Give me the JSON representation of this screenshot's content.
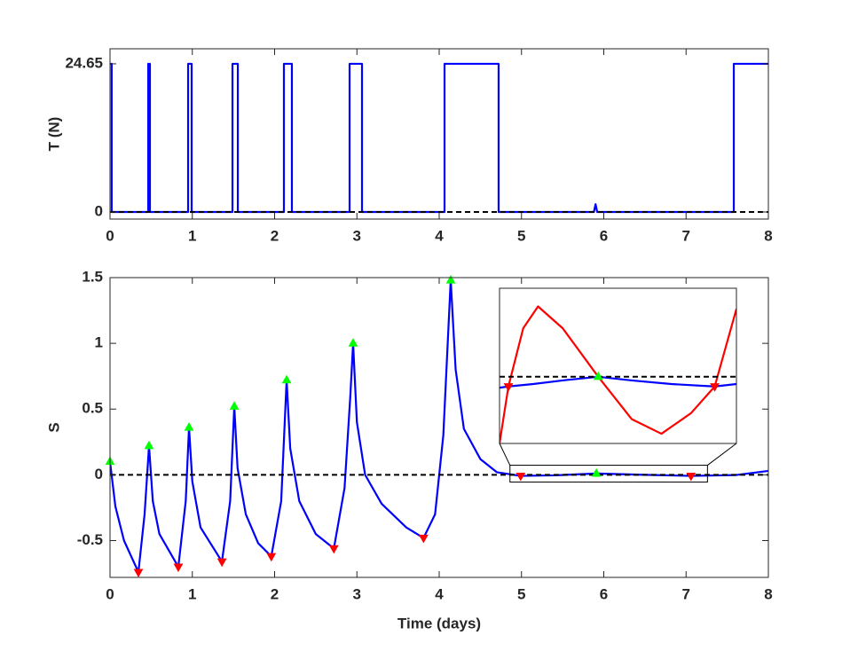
{
  "chart_data": [
    {
      "type": "line",
      "ylabel": "T (N)",
      "xlim": [
        0,
        8
      ],
      "xticks": [
        0,
        1,
        2,
        3,
        4,
        5,
        6,
        7,
        8
      ],
      "ylim": [
        -1.18,
        27.15
      ],
      "yticks": [
        0,
        24.65
      ],
      "hline": 0,
      "series": [
        {
          "color": "#0000ff",
          "x": [
            0,
            0.02,
            0.02,
            0.464,
            0.464,
            0.485,
            0.485,
            0.949,
            0.949,
            0.992,
            0.992,
            1.488,
            1.488,
            1.553,
            1.553,
            2.113,
            2.113,
            2.21,
            2.21,
            2.911,
            2.911,
            3.062,
            3.062,
            4.065,
            4.065,
            4.722,
            4.722,
            5.88,
            5.9,
            5.92,
            7.58,
            7.58,
            8
          ],
          "values": [
            24.65,
            24.65,
            0,
            0,
            24.65,
            24.65,
            0,
            0,
            24.65,
            24.65,
            0,
            0,
            24.65,
            24.65,
            0,
            0,
            24.65,
            24.65,
            0,
            0,
            24.65,
            24.65,
            0,
            0,
            24.65,
            24.65,
            0,
            0,
            1.3,
            0,
            0,
            24.65,
            24.65
          ]
        }
      ]
    },
    {
      "type": "line",
      "xlabel": "Time (days)",
      "ylabel": "S",
      "xlim": [
        0,
        8
      ],
      "xticks": [
        0,
        1,
        2,
        3,
        4,
        5,
        6,
        7,
        8
      ],
      "ylim": [
        -0.78,
        1.5
      ],
      "yticks": [
        -0.5,
        0,
        0.5,
        1,
        1.5
      ],
      "hline": 0,
      "series": [
        {
          "color": "#0000ff",
          "x": [
            0,
            0.065,
            0.17,
            0.345,
            0.42,
            0.474,
            0.52,
            0.6,
            0.83,
            0.92,
            0.96,
            1.0,
            1.1,
            1.36,
            1.46,
            1.51,
            1.55,
            1.65,
            1.8,
            1.96,
            2.08,
            2.146,
            2.19,
            2.3,
            2.5,
            2.72,
            2.85,
            2.92,
            2.954,
            3.0,
            3.1,
            3.3,
            3.6,
            3.81,
            3.95,
            4.05,
            4.14,
            4.2,
            4.3,
            4.5,
            4.7,
            4.99,
            5.4,
            5.91,
            6.5,
            7.06,
            7.6,
            8
          ],
          "values": [
            0.1,
            -0.24,
            -0.5,
            -0.74,
            -0.3,
            0.22,
            -0.2,
            -0.45,
            -0.7,
            -0.2,
            0.36,
            -0.05,
            -0.4,
            -0.66,
            -0.2,
            0.52,
            0.05,
            -0.3,
            -0.52,
            -0.62,
            -0.2,
            0.72,
            0.2,
            -0.2,
            -0.45,
            -0.56,
            -0.1,
            0.6,
            1.0,
            0.4,
            0.0,
            -0.22,
            -0.4,
            -0.48,
            -0.3,
            0.3,
            1.48,
            0.8,
            0.35,
            0.12,
            0.02,
            -0.008,
            -0.004,
            0.01,
            0.0,
            -0.008,
            -0.002,
            0.03
          ]
        },
        {
          "color": "#00ff00",
          "marker": "triangle-up",
          "x": [
            0,
            0.474,
            0.96,
            1.51,
            2.146,
            2.954,
            4.14,
            5.91
          ],
          "values": [
            0.1,
            0.22,
            0.36,
            0.52,
            0.72,
            1.0,
            1.48,
            0.01
          ]
        },
        {
          "color": "#ff0000",
          "marker": "triangle-down",
          "x": [
            0.345,
            0.83,
            1.36,
            1.96,
            2.72,
            3.81,
            4.99,
            7.06
          ],
          "values": [
            -0.74,
            -0.7,
            -0.66,
            -0.62,
            -0.56,
            -0.48,
            -0.008,
            -0.008
          ]
        }
      ]
    },
    {
      "type": "line",
      "xlim": [
        4.86,
        7.26
      ],
      "ylim": [
        -0.055,
        0.073
      ],
      "hline": 0,
      "series": [
        {
          "color": "#0000ff",
          "x": [
            4.86,
            4.95,
            5.2,
            5.5,
            5.86,
            6.2,
            6.6,
            7.04,
            7.26
          ],
          "values": [
            -0.009,
            -0.008,
            -0.006,
            -0.003,
            0.0,
            -0.003,
            -0.006,
            -0.008,
            -0.006
          ]
        },
        {
          "color": "#ff0000",
          "x": [
            4.86,
            4.95,
            5.1,
            5.25,
            5.5,
            5.86,
            6.2,
            6.5,
            6.8,
            7.04,
            7.26
          ],
          "values": [
            -0.055,
            -0.008,
            0.04,
            0.058,
            0.04,
            0.0,
            -0.035,
            -0.047,
            -0.03,
            -0.008,
            0.056
          ]
        },
        {
          "color": "#ff0000",
          "marker": "triangle-down",
          "x": [
            4.95,
            7.04
          ],
          "values": [
            -0.008,
            -0.008
          ]
        },
        {
          "color": "#00ff00",
          "marker": "triangle-up",
          "x": [
            5.86
          ],
          "values": [
            0.0
          ]
        }
      ]
    }
  ]
}
